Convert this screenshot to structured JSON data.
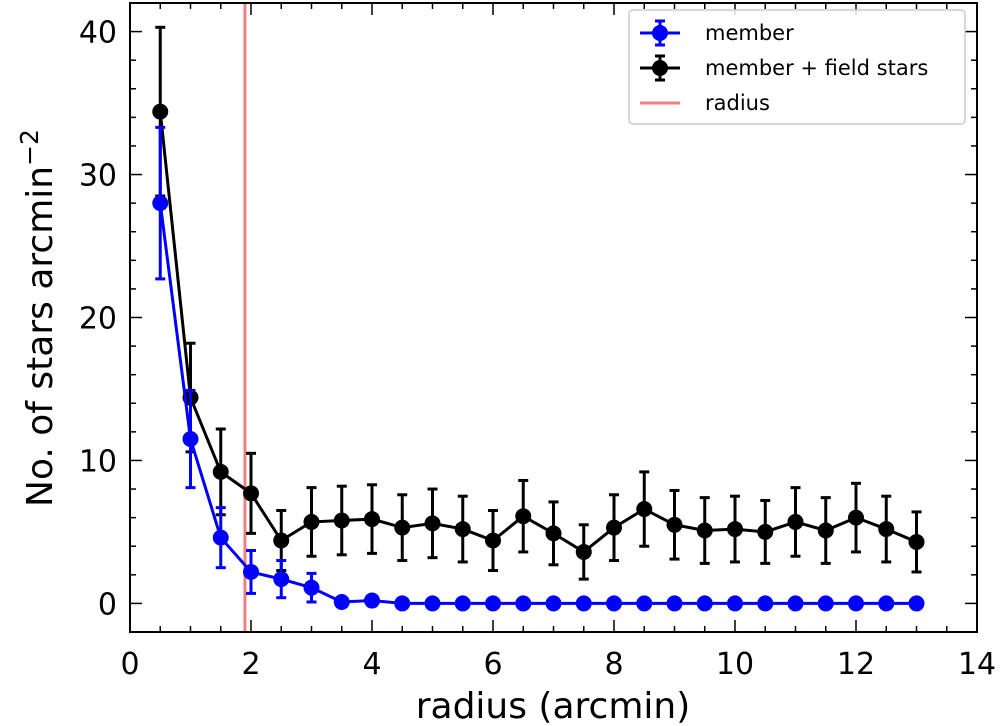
{
  "chart_data": {
    "type": "line",
    "xlabel": "radius (arcmin)",
    "ylabel": "No. of stars  arcmin",
    "ylabel_superscript": "−2",
    "xlim": [
      0,
      14
    ],
    "ylim": [
      -2,
      42
    ],
    "xticks": [
      0,
      2,
      4,
      6,
      8,
      10,
      12,
      14
    ],
    "yticks": [
      0,
      10,
      20,
      30,
      40
    ],
    "vline": {
      "name": "radius",
      "x": 1.9,
      "color": "#f08080"
    },
    "series": [
      {
        "name": "member + field stars",
        "color": "#000000",
        "x": [
          0.5,
          1.0,
          1.5,
          2.0,
          2.5,
          3.0,
          3.5,
          4.0,
          4.5,
          5.0,
          5.5,
          6.0,
          6.5,
          7.0,
          7.5,
          8.0,
          8.5,
          9.0,
          9.5,
          10.0,
          10.5,
          11.0,
          11.5,
          12.0,
          12.5,
          13.0
        ],
        "y": [
          34.4,
          14.4,
          9.2,
          7.7,
          4.4,
          5.7,
          5.8,
          5.9,
          5.3,
          5.6,
          5.2,
          4.4,
          6.1,
          4.9,
          3.6,
          5.3,
          6.6,
          5.5,
          5.1,
          5.2,
          5.0,
          5.7,
          5.1,
          6.0,
          5.2,
          4.3
        ],
        "yerr": [
          5.9,
          3.8,
          3.0,
          2.8,
          2.1,
          2.4,
          2.4,
          2.4,
          2.3,
          2.4,
          2.3,
          2.1,
          2.5,
          2.2,
          1.9,
          2.3,
          2.6,
          2.4,
          2.3,
          2.3,
          2.2,
          2.4,
          2.3,
          2.4,
          2.3,
          2.1
        ]
      },
      {
        "name": "member",
        "color": "#0000ff",
        "x": [
          0.5,
          1.0,
          1.5,
          2.0,
          2.5,
          3.0,
          3.5,
          4.0,
          4.5,
          5.0,
          5.5,
          6.0,
          6.5,
          7.0,
          7.5,
          8.0,
          8.5,
          9.0,
          9.5,
          10.0,
          10.5,
          11.0,
          11.5,
          12.0,
          12.5,
          13.0
        ],
        "y": [
          28.0,
          11.5,
          4.6,
          2.2,
          1.7,
          1.1,
          0.1,
          0.2,
          0.0,
          0.0,
          0.0,
          0.0,
          0.0,
          0.0,
          0.0,
          0.0,
          0.0,
          0.0,
          0.0,
          0.0,
          0.0,
          0.0,
          0.0,
          0.0,
          0.0,
          0.0
        ],
        "yerr": [
          5.3,
          3.4,
          2.1,
          1.5,
          1.3,
          1.0,
          0,
          0,
          0,
          0,
          0,
          0,
          0,
          0,
          0,
          0,
          0,
          0,
          0,
          0,
          0,
          0,
          0,
          0,
          0,
          0
        ]
      }
    ],
    "legend": {
      "position": "upper-right",
      "entries": [
        {
          "label": "member",
          "color": "#0000ff",
          "kind": "errorbar"
        },
        {
          "label": "member + field stars",
          "color": "#000000",
          "kind": "errorbar"
        },
        {
          "label": "radius",
          "color": "#f08080",
          "kind": "line"
        }
      ]
    }
  }
}
